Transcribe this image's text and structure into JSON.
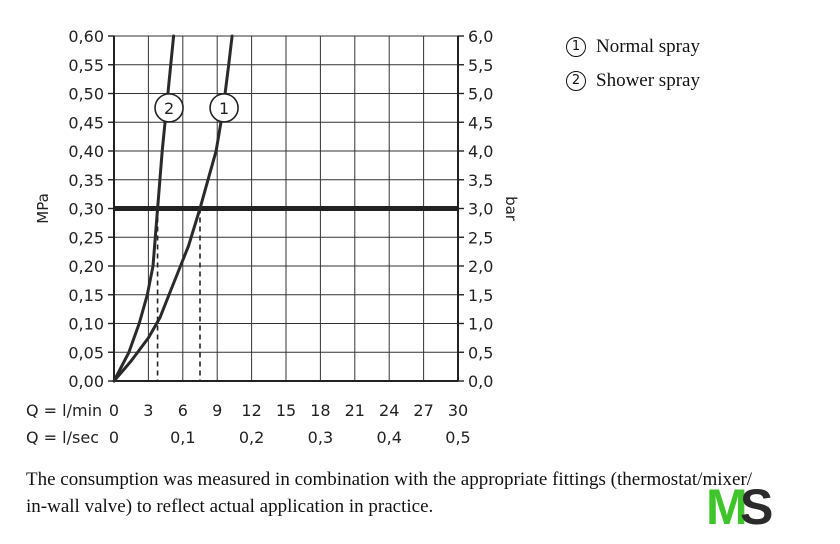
{
  "chart_data": {
    "type": "line",
    "xlabel_primary": "Q = l/min",
    "xlabel_secondary": "Q = l/sec",
    "ylabel_left": "MPa",
    "ylabel_right": "bar",
    "xlim": [
      0,
      30
    ],
    "ylim": [
      0,
      0.6
    ],
    "x_ticks_primary": [
      "0",
      "3",
      "6",
      "9",
      "12",
      "15",
      "18",
      "21",
      "24",
      "27",
      "30"
    ],
    "x_ticks_primary_values": [
      0,
      3,
      6,
      9,
      12,
      15,
      18,
      21,
      24,
      27,
      30
    ],
    "x_ticks_secondary": [
      "0",
      "0,1",
      "0,2",
      "0,3",
      "0,4",
      "0,5"
    ],
    "x_ticks_secondary_values": [
      0,
      6,
      12,
      18,
      24,
      30
    ],
    "y_ticks_left": [
      "0,00",
      "0,05",
      "0,10",
      "0,15",
      "0,20",
      "0,25",
      "0,30",
      "0,35",
      "0,40",
      "0,45",
      "0,50",
      "0,55",
      "0,60"
    ],
    "y_ticks_right": [
      "0,0",
      "0,5",
      "1,0",
      "1,5",
      "2,0",
      "2,5",
      "3,0",
      "3,5",
      "4,0",
      "4,5",
      "5,0",
      "5,5",
      "6,0"
    ],
    "y_tick_values": [
      0,
      0.05,
      0.1,
      0.15,
      0.2,
      0.25,
      0.3,
      0.35,
      0.4,
      0.45,
      0.5,
      0.55,
      0.6
    ],
    "grid": true,
    "reference_line": {
      "y": 0.3
    },
    "series": [
      {
        "name": "1",
        "marker_x": 9.6,
        "marker_y": 0.475,
        "drop_x": 7.5,
        "points": [
          [
            0,
            0
          ],
          [
            1.5,
            0.035
          ],
          [
            3,
            0.075
          ],
          [
            4,
            0.11
          ],
          [
            5,
            0.16
          ],
          [
            5.8,
            0.2
          ],
          [
            6.5,
            0.235
          ],
          [
            7.5,
            0.3
          ],
          [
            8.2,
            0.35
          ],
          [
            8.9,
            0.4
          ],
          [
            9.5,
            0.47
          ],
          [
            10,
            0.55
          ],
          [
            10.3,
            0.6
          ]
        ]
      },
      {
        "name": "2",
        "marker_x": 4.8,
        "marker_y": 0.475,
        "drop_x": 3.8,
        "points": [
          [
            0,
            0
          ],
          [
            1.3,
            0.05
          ],
          [
            2.2,
            0.1
          ],
          [
            2.9,
            0.15
          ],
          [
            3.4,
            0.2
          ],
          [
            3.8,
            0.3
          ],
          [
            4.2,
            0.4
          ],
          [
            4.7,
            0.5
          ],
          [
            5.2,
            0.6
          ]
        ]
      }
    ]
  },
  "legend": [
    {
      "symbol": "1",
      "label": "Normal spray"
    },
    {
      "symbol": "2",
      "label": "Shower spray"
    }
  ],
  "caption": "The consumption was measured in combination with the appropriate fittings (thermostat/mixer/\nin-wall valve) to reflect actual application in practice.",
  "logo": {
    "part1": "M",
    "part2": "S",
    "colors": {
      "m": "#3fc52b",
      "s": "#2b2b2b"
    }
  }
}
